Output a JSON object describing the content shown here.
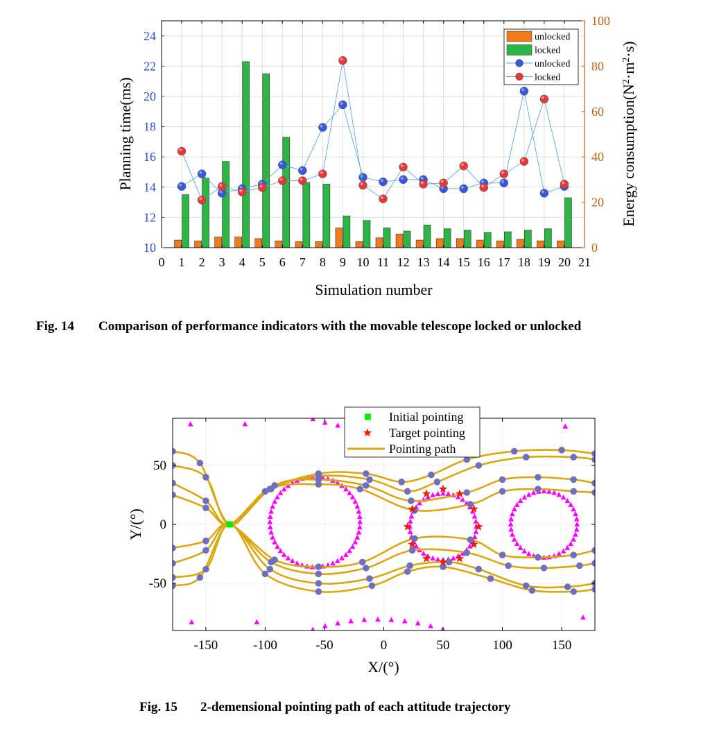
{
  "figures": [
    {
      "number": "Fig. 14",
      "caption": "Comparison of performance indicators with the movable telescope locked or unlocked"
    },
    {
      "number": "Fig. 15",
      "caption": "2-demensional pointing path of each attitude trajectory"
    }
  ],
  "chart_data": [
    {
      "type": "bar",
      "xlabel": "Simulation number",
      "ylabel": "Planning time(ms)",
      "y2label": "Energy consumption(N²·m²·s)",
      "xlim": [
        0,
        21
      ],
      "ylim": [
        10,
        25
      ],
      "y2lim": [
        0,
        100
      ],
      "x_ticks": [
        0,
        1,
        2,
        3,
        4,
        5,
        6,
        7,
        8,
        9,
        10,
        11,
        12,
        13,
        14,
        15,
        16,
        17,
        18,
        19,
        20,
        21
      ],
      "y_ticks": [
        10,
        12,
        14,
        16,
        18,
        20,
        22,
        24
      ],
      "y2_ticks": [
        0,
        20,
        40,
        60,
        80,
        100
      ],
      "categories": [
        1,
        2,
        3,
        4,
        5,
        6,
        7,
        8,
        9,
        10,
        11,
        12,
        13,
        14,
        15,
        16,
        17,
        18,
        19,
        20
      ],
      "legend_position": "top-right",
      "colors": {
        "unlocked_bar": "#f07b1a",
        "locked_bar": "#2db545",
        "unlocked_line": "#3b57d6",
        "locked_line": "#e23a3a",
        "left_axis": "#2f4fce",
        "right_axis": "#b8641b"
      },
      "series": [
        {
          "name": "unlocked",
          "kind": "bar",
          "axis": "left",
          "values": [
            10.5,
            10.45,
            10.7,
            10.7,
            10.6,
            10.45,
            10.4,
            10.4,
            11.3,
            10.4,
            10.65,
            10.9,
            10.5,
            10.6,
            10.6,
            10.5,
            10.45,
            10.55,
            10.45,
            10.45
          ]
        },
        {
          "name": "locked",
          "kind": "bar",
          "axis": "left",
          "values": [
            13.5,
            14.6,
            15.7,
            22.3,
            21.5,
            17.3,
            14.3,
            14.2,
            12.1,
            11.8,
            11.3,
            11.1,
            11.5,
            11.25,
            11.15,
            11.0,
            11.05,
            11.15,
            11.25,
            13.3
          ]
        },
        {
          "name": "unlocked",
          "kind": "line",
          "axis": "right",
          "values": [
            27,
            32.5,
            24,
            26,
            28,
            36.5,
            34,
            53,
            63,
            31,
            29,
            30,
            30,
            26,
            26,
            28.5,
            28.5,
            69,
            24,
            27
          ]
        },
        {
          "name": "locked",
          "kind": "line",
          "axis": "right",
          "values": [
            42.5,
            21,
            27,
            24.5,
            26.5,
            29.5,
            29.5,
            32.5,
            82.5,
            27.5,
            21.5,
            35.5,
            28,
            28.5,
            36,
            26.5,
            32.5,
            38,
            65.5,
            28
          ]
        }
      ]
    },
    {
      "type": "scatter",
      "xlabel": "X/(°)",
      "ylabel": "Y/(°)",
      "xlim": [
        -178,
        178
      ],
      "ylim": [
        -90,
        90
      ],
      "x_ticks": [
        -150,
        -100,
        -50,
        0,
        50,
        100,
        150
      ],
      "y_ticks": [
        -50,
        0,
        50
      ],
      "legend_position": "top-center",
      "legend": [
        "Initial pointing",
        "Target pointing",
        "Pointing path"
      ],
      "colors": {
        "path": "#d9a70f",
        "waypoints": "#6f6fbe",
        "obstacles": "#ff00ff",
        "initial": "#00ee00",
        "target": "#ff1a00"
      },
      "initial_pointing": [
        -130,
        0
      ],
      "target_pointing": [
        [
          50,
          30
        ],
        [
          64,
          26
        ],
        [
          76,
          13
        ],
        [
          80,
          -2
        ],
        [
          76,
          -17
        ],
        [
          64,
          -29
        ],
        [
          50,
          -32
        ],
        [
          36,
          -29
        ],
        [
          24,
          -17
        ],
        [
          20,
          -2
        ],
        [
          24,
          13
        ],
        [
          36,
          26
        ]
      ],
      "obstacle_circles": [
        {
          "center": [
            -58,
            2
          ],
          "radius": 38
        },
        {
          "center": [
            50,
            -2
          ],
          "radius": 28
        },
        {
          "center": [
            135,
            0
          ],
          "radius": 28
        }
      ],
      "obstacle_arcs": [
        {
          "center": [
            -5,
            152
          ],
          "radius": 115,
          "from": 196,
          "to": 344
        },
        {
          "center": [
            -5,
            -152
          ],
          "radius": 115,
          "from": 16,
          "to": 164
        }
      ],
      "obstacle_points": [
        [
          -163,
          85
        ],
        [
          -117,
          85
        ],
        [
          -162,
          -83
        ],
        [
          -107,
          -83
        ],
        [
          153,
          83
        ],
        [
          168,
          -79
        ]
      ],
      "paths": [
        [
          [
            -178,
            62
          ],
          [
            -155,
            52
          ],
          [
            -130,
            0
          ],
          [
            -100,
            28
          ],
          [
            -55,
            43
          ],
          [
            -15,
            43
          ],
          [
            15,
            36
          ],
          [
            40,
            42
          ],
          [
            70,
            55
          ],
          [
            110,
            62
          ],
          [
            150,
            63
          ],
          [
            178,
            60
          ]
        ],
        [
          [
            -178,
            50
          ],
          [
            -150,
            40
          ],
          [
            -130,
            0
          ],
          [
            -95,
            30
          ],
          [
            -55,
            41
          ],
          [
            -12,
            38
          ],
          [
            20,
            28
          ],
          [
            45,
            36
          ],
          [
            80,
            50
          ],
          [
            120,
            57
          ],
          [
            160,
            57
          ],
          [
            178,
            55
          ]
        ],
        [
          [
            -178,
            35
          ],
          [
            -150,
            20
          ],
          [
            -130,
            0
          ],
          [
            -92,
            33
          ],
          [
            -55,
            38
          ],
          [
            -15,
            33
          ],
          [
            23,
            20
          ],
          [
            70,
            27
          ],
          [
            100,
            38
          ],
          [
            130,
            40
          ],
          [
            160,
            38
          ],
          [
            178,
            35
          ]
        ],
        [
          [
            -178,
            25
          ],
          [
            -150,
            14
          ],
          [
            -130,
            0
          ],
          [
            -96,
            30
          ],
          [
            -55,
            34
          ],
          [
            -20,
            30
          ],
          [
            26,
            12
          ],
          [
            73,
            17
          ],
          [
            100,
            28
          ],
          [
            130,
            30
          ],
          [
            160,
            28
          ],
          [
            178,
            27
          ]
        ],
        [
          [
            -178,
            -20
          ],
          [
            -150,
            -14
          ],
          [
            -130,
            0
          ],
          [
            -92,
            -30
          ],
          [
            -55,
            -36
          ],
          [
            -18,
            -32
          ],
          [
            26,
            -12
          ],
          [
            73,
            -13
          ],
          [
            100,
            -26
          ],
          [
            130,
            -28
          ],
          [
            160,
            -26
          ],
          [
            178,
            -22
          ]
        ],
        [
          [
            -178,
            -33
          ],
          [
            -150,
            -22
          ],
          [
            -130,
            0
          ],
          [
            -95,
            -32
          ],
          [
            -55,
            -42
          ],
          [
            -15,
            -37
          ],
          [
            24,
            -22
          ],
          [
            70,
            -24
          ],
          [
            105,
            -35
          ],
          [
            135,
            -37
          ],
          [
            165,
            -35
          ],
          [
            178,
            -33
          ]
        ],
        [
          [
            -178,
            -45
          ],
          [
            -150,
            -38
          ],
          [
            -130,
            0
          ],
          [
            -96,
            -38
          ],
          [
            -55,
            -50
          ],
          [
            -12,
            -46
          ],
          [
            22,
            -35
          ],
          [
            55,
            -32
          ],
          [
            80,
            -38
          ],
          [
            120,
            -52
          ],
          [
            155,
            -53
          ],
          [
            178,
            -50
          ]
        ],
        [
          [
            -178,
            -52
          ],
          [
            -155,
            -45
          ],
          [
            -130,
            0
          ],
          [
            -100,
            -42
          ],
          [
            -55,
            -57
          ],
          [
            -10,
            -52
          ],
          [
            20,
            -40
          ],
          [
            50,
            -36
          ],
          [
            90,
            -46
          ],
          [
            125,
            -56
          ],
          [
            160,
            -57
          ],
          [
            178,
            -55
          ]
        ]
      ]
    }
  ]
}
